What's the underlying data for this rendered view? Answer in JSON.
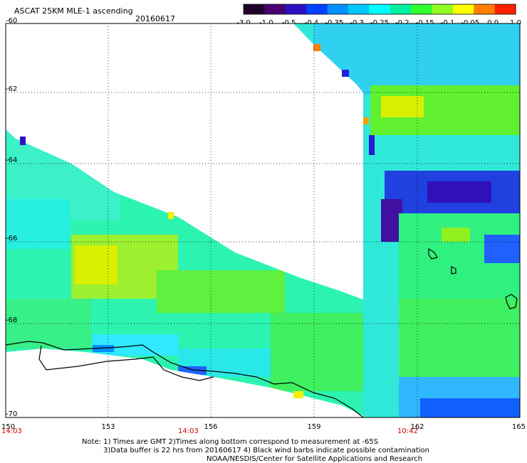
{
  "header": {
    "title": "ASCAT 25KM MLE-1 ascending",
    "date": "20160617"
  },
  "colorbar": {
    "labels": [
      "-3.0",
      "-1.0",
      "-0.5",
      "-0.4",
      "-0.35",
      "-0.3",
      "-0.25",
      "-0.2",
      "-0.15",
      "-0.1",
      "-0.05",
      "0.0",
      "1.0"
    ],
    "colors": [
      "#200028",
      "#4a0070",
      "#2a10c0",
      "#0040ff",
      "#0090ff",
      "#00c8ff",
      "#00ffff",
      "#00f0a0",
      "#30ff30",
      "#90ff20",
      "#ffff00",
      "#ff8000",
      "#ff2000"
    ]
  },
  "axes": {
    "lat_labels": [
      "-60",
      "-62",
      "-64",
      "-66",
      "-68",
      "-70"
    ],
    "lon_labels": [
      "150",
      "153",
      "156",
      "159",
      "162",
      "165"
    ],
    "time_labels": [
      "14:03",
      "14:03",
      "10:42"
    ],
    "time_color": "#cc0000"
  },
  "notes": {
    "line1": "Note: 1) Times are GMT 2)Times along bottom correspond to measurement at -65S",
    "line2": "3)Data buffer is 22 hrs from 20160617 4) Black wind barbs indicate possible contamination",
    "line3": "NOAA/NESDIS/Center for Satellite Applications and Research"
  }
}
